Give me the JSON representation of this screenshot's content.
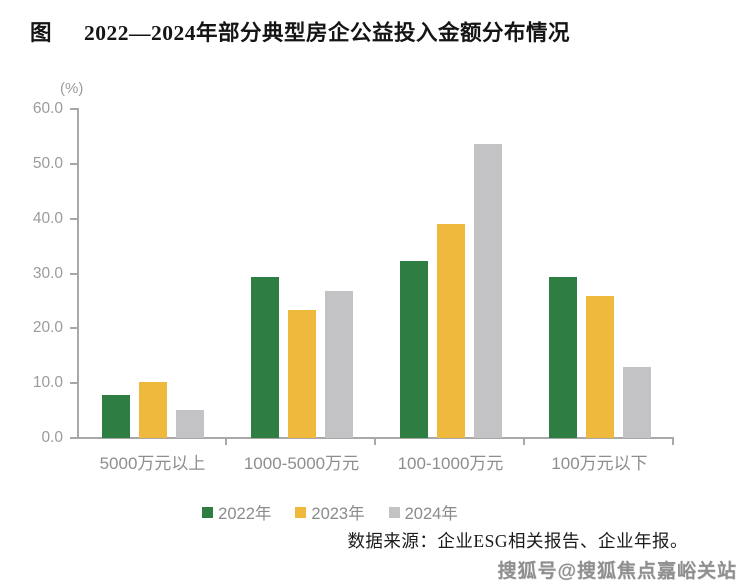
{
  "figure_label": "图",
  "title": "2022—2024年部分典型房企公益投入金额分布情况",
  "y_axis": {
    "unit_label": "(%)",
    "ticks": [
      "60.0",
      "50.0",
      "40.0",
      "30.0",
      "20.0",
      "10.0",
      "0.0"
    ]
  },
  "chart_data": {
    "type": "bar",
    "title": "2022—2024年部分典型房企公益投入金额分布情况",
    "categories": [
      "5000万元以上",
      "1000-5000万元",
      "100-1000万元",
      "100万元以下"
    ],
    "series": [
      {
        "name": "2022年",
        "color": "#2e7d42",
        "values": [
          7.8,
          29.3,
          32.2,
          29.3
        ]
      },
      {
        "name": "2023年",
        "color": "#efb93d",
        "values": [
          10.2,
          23.4,
          39.0,
          25.9
        ]
      },
      {
        "name": "2024年",
        "color": "#c3c3c6",
        "values": [
          5.2,
          26.8,
          53.7,
          13.0
        ]
      }
    ],
    "xlabel": "",
    "ylabel": "(%)",
    "ylim": [
      0,
      60
    ],
    "grid": false,
    "legend_position": "bottom",
    "axis_color": "#a8a8a8"
  },
  "source_note": "数据来源：企业ESG相关报告、企业年报。",
  "watermark": "搜狐号@搜狐焦点嘉峪关站"
}
